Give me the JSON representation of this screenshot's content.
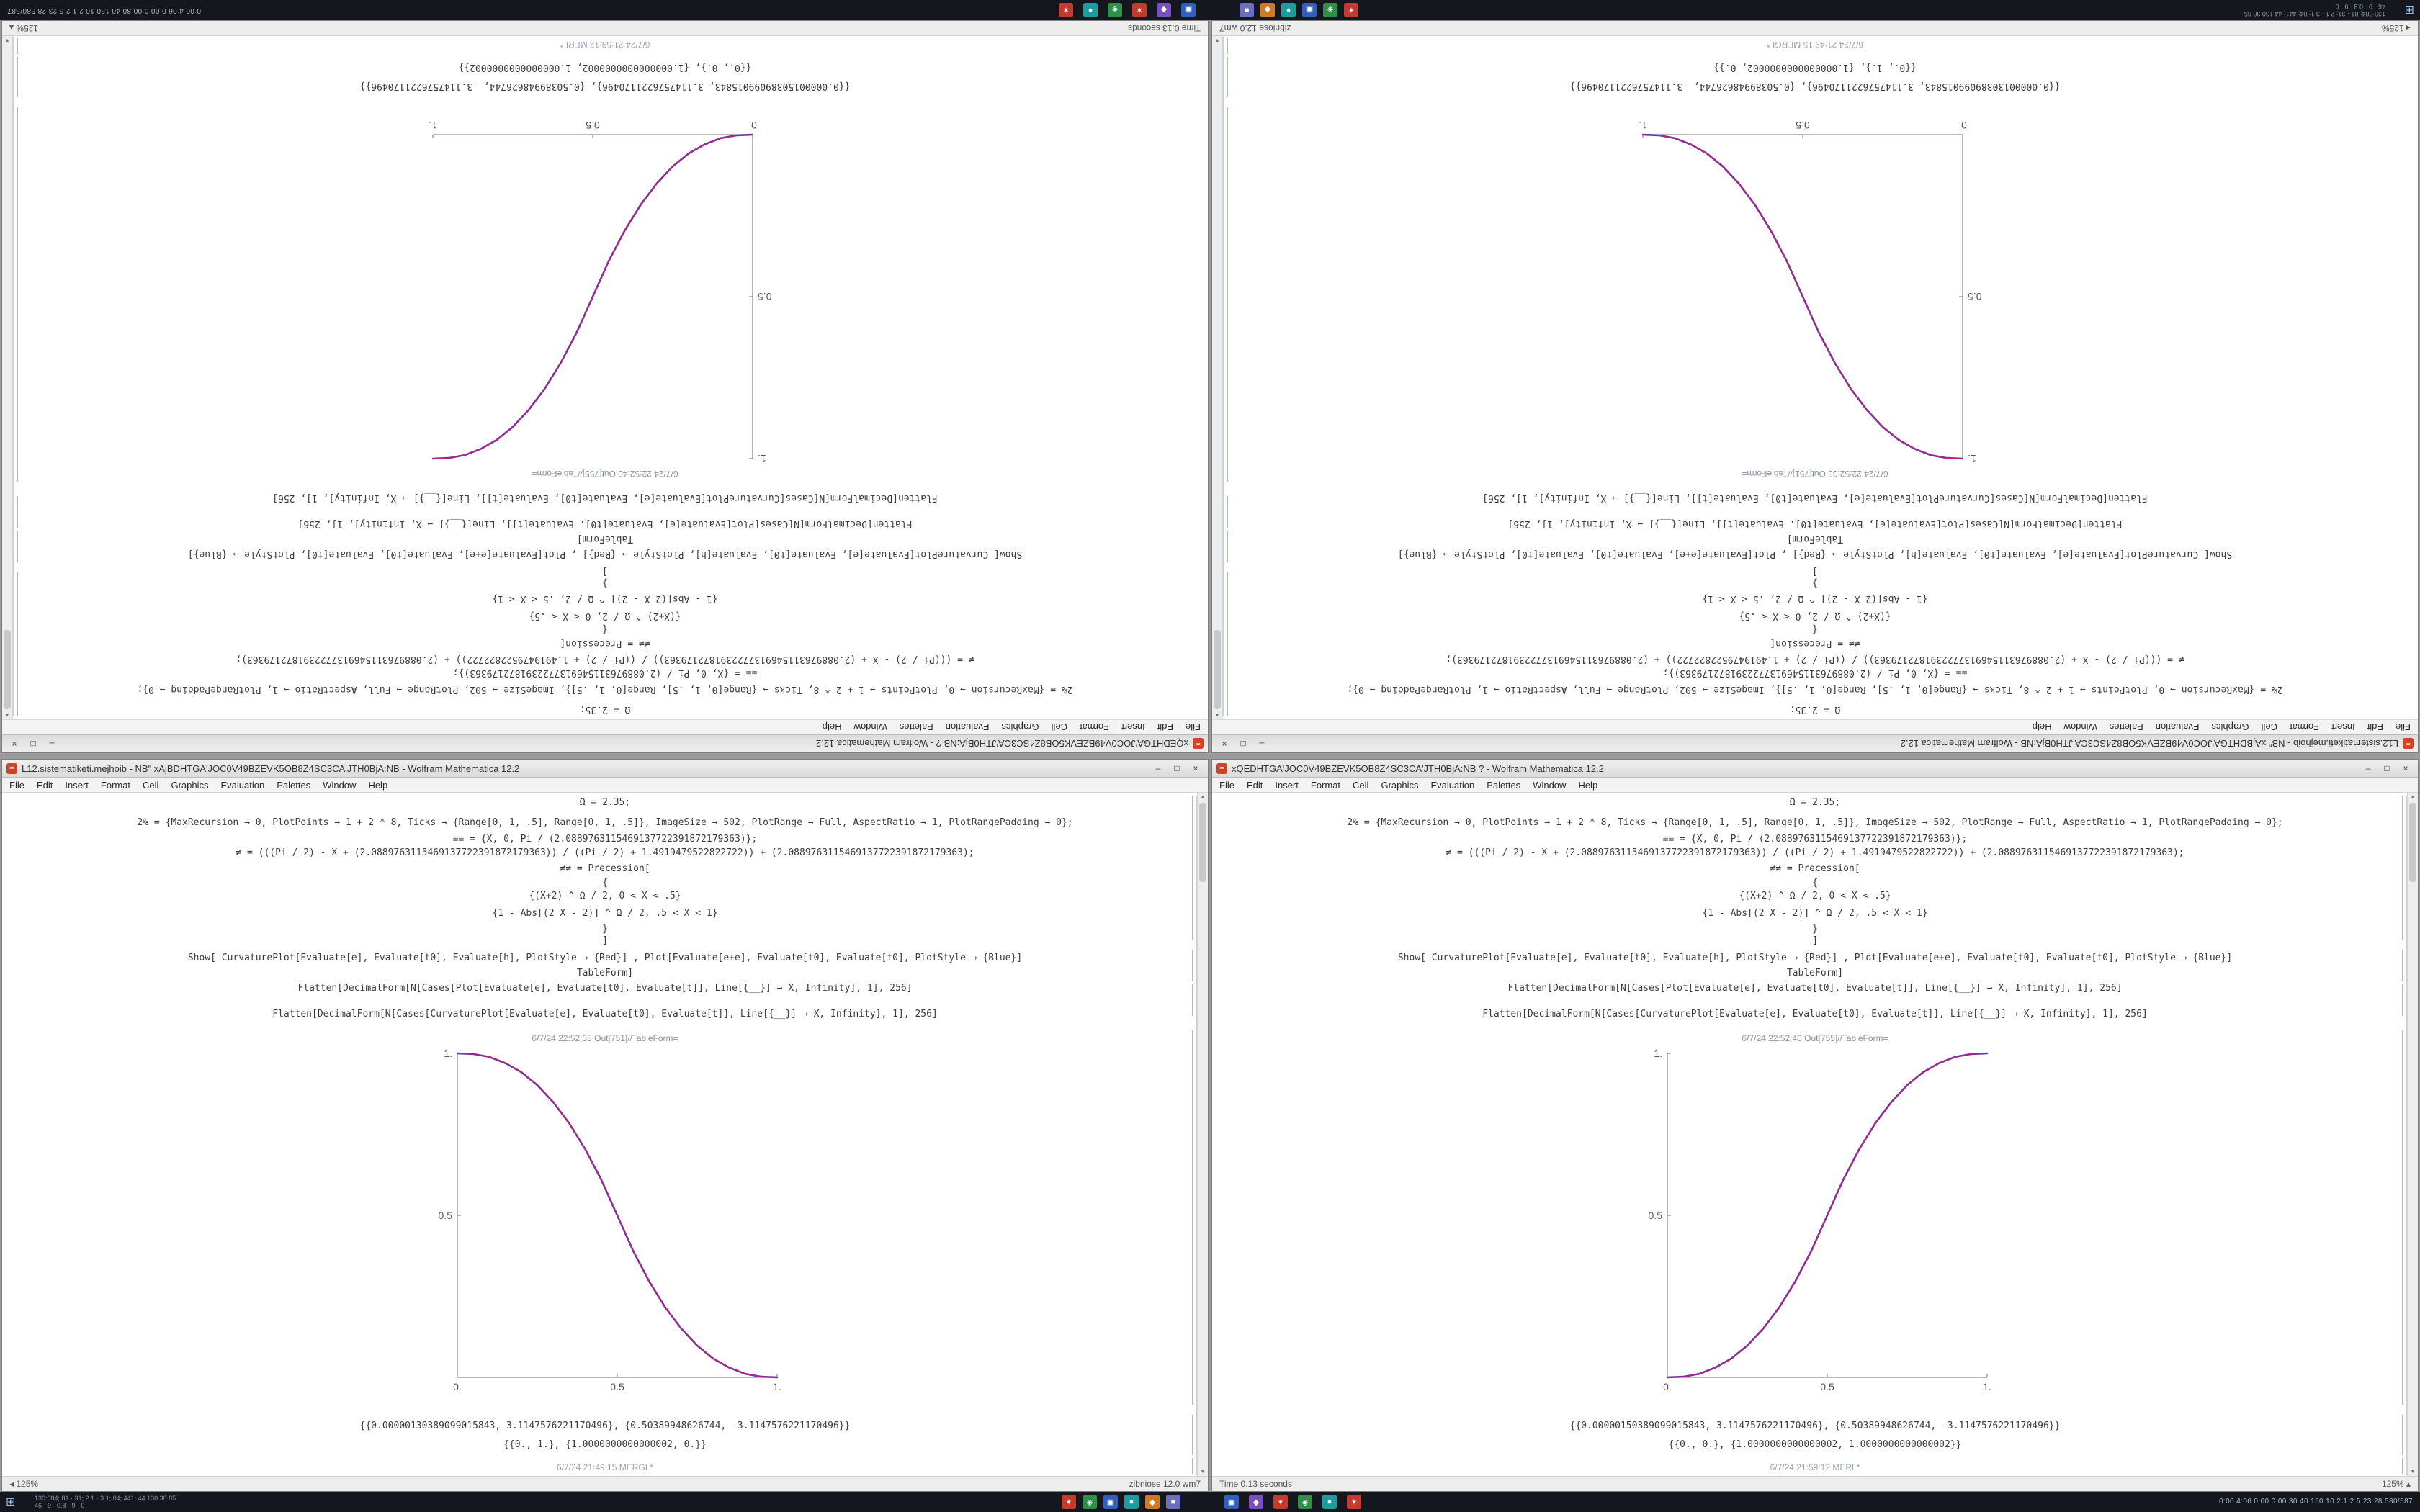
{
  "chrome": {
    "menu_items": [
      "File",
      "Edit",
      "Insert",
      "Format",
      "Cell",
      "Graphics",
      "Evaluation",
      "Palettes",
      "Window",
      "Help"
    ],
    "minimize_label": "–",
    "maximize_label": "□",
    "close_label": "×",
    "scroll_up": "▲",
    "scroll_down": "▼",
    "app_icon_glyph": "✶",
    "app_icon_color": "#d6402a"
  },
  "windows": {
    "left": {
      "title": "L12.sistematiketi.mejhoib - NB\" xAjBDHTGA'JOC0V49BZEVK5OB8Z4SC3CA'JTH0BjA:NB - Wolfram Mathematica 12.2",
      "code_lines": [
        "Ω = 2.35;",
        "2% = {MaxRecursion → 0, PlotPoints → 1 + 2 * 8, Ticks → {Range[0, 1, .5], Range[0, 1, .5]}, ImageSize → 502, PlotRange → Full, AspectRatio → 1, PlotRangePadding → 0};",
        "≡≡ = {X, 0, Pi / (2.0889763115469137722391872179363)};",
        "≠ = (((Pi / 2) - X + (2.0889763115469137722391872179363)) / ((Pi / 2) + 1.4919479522822722)) + (2.0889763115469137722391872179363);",
        "≠≠ = Precession["
      ],
      "braces_lines": [
        "{",
        "{(X+2) ^ Ω / 2,  0 < X < .5}",
        "{1 - Abs[(2 X - 2)] ^ Ω / 2,  .5 < X < 1}",
        "}",
        "]"
      ],
      "show_line": "Show[  CurvaturePlot[Evaluate[e], Evaluate[t0], Evaluate[h], PlotStyle → {Red}]  ,  Plot[Evaluate[e+e], Evaluate[t0], Evaluate[t0], PlotStyle → {Blue}]",
      "tableform_line": "TableForm]",
      "flatten_lines": [
        "Flatten[DecimalForm[N[Cases[Plot[Evaluate[e], Evaluate[t0], Evaluate[t]], Line[{__}] → X, Infinity], 1], 256]",
        "Flatten[DecimalForm[N[Cases[CurvaturePlot[Evaluate[e], Evaluate[t0], Evaluate[t]], Line[{__}] → X, Infinity], 1], 256]"
      ],
      "out_label": "6/7/24 22:52:35 Out[751]//TableForm=",
      "out_numbers": [
        "{{0.00000130389099015843, 3.1147576221170496}, {0.50389948626744, -3.1147576221170496}}",
        "{{0., 1.}, {1.0000000000000002, 0.}}"
      ],
      "bottom_label": "6/7/24 21:49:15 MERGL*",
      "status_left": "◂ 125%",
      "status_right": "zibniose 12.0 wm7"
    },
    "right": {
      "title": "xQEDHTGA'JOC0V49BZEVK5OB8Z4SC3CA'JTH0BjA:NB ? - Wolfram Mathematica 12.2",
      "code_lines": [
        "Ω = 2.35;",
        "2% = {MaxRecursion → 0, PlotPoints → 1 + 2 * 8, Ticks → {Range[0, 1, .5], Range[0, 1, .5]}, ImageSize → 502, PlotRange → Full, AspectRatio → 1, PlotRangePadding → 0};",
        "≡≡ = {X, 0, Pi / (2.0889763115469137722391872179363)};",
        "≠ = (((Pi / 2) - X + (2.0889763115469137722391872179363)) / ((Pi / 2) + 1.4919479522822722)) + (2.0889763115469137722391872179363);",
        "≠≠ = Precession["
      ],
      "braces_lines": [
        "{",
        "{(X+2) ^ Ω / 2,  0 < X < .5}",
        "{1 - Abs[(2 X - 2)] ^ Ω / 2,  .5 < X < 1}",
        "}",
        "]"
      ],
      "show_line": "Show[  CurvaturePlot[Evaluate[e], Evaluate[t0], Evaluate[h], PlotStyle → {Red}]  ,  Plot[Evaluate[e+e], Evaluate[t0], Evaluate[t0], PlotStyle → {Blue}]",
      "tableform_line": "TableForm]",
      "flatten_lines": [
        "Flatten[DecimalForm[N[Cases[Plot[Evaluate[e], Evaluate[t0], Evaluate[t]], Line[{__}] → X, Infinity], 1], 256]",
        "Flatten[DecimalForm[N[Cases[CurvaturePlot[Evaluate[e], Evaluate[t0], Evaluate[t]], Line[{__}] → X, Infinity], 1], 256]"
      ],
      "out_label": "6/7/24 22:52:40 Out[755]//TableForm=",
      "out_numbers": [
        "{{0.00000150389099015843, 3.1147576221170496}, {0.50389948626744, -3.1147576221170496}}",
        "{{0., 0.}, {1.0000000000000002, 1.0000000000000002}}"
      ],
      "bottom_label": "6/7/24 21:59:12 MERL*",
      "status_left": "Time 0.13 seconds",
      "status_right": "125% ▴"
    }
  },
  "taskbar": {
    "start_glyph": "⊞",
    "left_text_line1": "130:084; 81 · 31; 2.1 · 3.1; 04; 441; 44 130 30 85",
    "left_text_line2": "46 · 9 · 0.8 · 9 · 0",
    "app_icons_group1": [
      {
        "label": "✶",
        "color": "#c23b2e"
      },
      {
        "label": "◈",
        "color": "#2e8f4a"
      },
      {
        "label": "▣",
        "color": "#2f5fbf"
      },
      {
        "label": "●",
        "color": "#1d9e9e"
      },
      {
        "label": "◆",
        "color": "#d07a22"
      },
      {
        "label": "■",
        "color": "#6a6fbf"
      }
    ],
    "app_icons_group2": [
      {
        "label": "▣",
        "color": "#2f5fbf"
      },
      {
        "label": "◆",
        "color": "#7a4fbf"
      },
      {
        "label": "✶",
        "color": "#c23b2e"
      },
      {
        "label": "◈",
        "color": "#2e8f4a"
      },
      {
        "label": "●",
        "color": "#1d9e9e"
      },
      {
        "label": "✶",
        "color": "#c23b2e"
      }
    ],
    "tray_text": "0:00   4:06   0:00   0:00    30 40 150 10    2.1 2.5    23 28    580/587"
  },
  "chart_data": [
    {
      "type": "line",
      "title": "",
      "xlabel": "",
      "ylabel": "",
      "x": [
        0,
        0.05,
        0.1,
        0.15,
        0.2,
        0.25,
        0.3,
        0.35,
        0.4,
        0.45,
        0.5,
        0.55,
        0.6,
        0.65,
        0.7,
        0.75,
        0.8,
        0.85,
        0.9,
        0.95,
        1
      ],
      "series": [
        {
          "name": "CurvaturePlot (Red)",
          "color": "#cf2460",
          "values": [
            1,
            0.998,
            0.989,
            0.97,
            0.942,
            0.902,
            0.849,
            0.784,
            0.704,
            0.61,
            0.5,
            0.39,
            0.296,
            0.216,
            0.151,
            0.098,
            0.058,
            0.03,
            0.011,
            0.002,
            0
          ]
        },
        {
          "name": "Plot (Blue)",
          "color": "#4430c8",
          "values": [
            1,
            0.998,
            0.989,
            0.97,
            0.942,
            0.902,
            0.849,
            0.784,
            0.704,
            0.61,
            0.5,
            0.39,
            0.296,
            0.216,
            0.151,
            0.098,
            0.058,
            0.03,
            0.011,
            0.002,
            0
          ]
        }
      ],
      "xlim": [
        0,
        1
      ],
      "ylim": [
        0,
        1
      ],
      "xticks": [
        0,
        0.5,
        1
      ],
      "yticks": [
        0,
        0.5,
        1
      ],
      "xtick_labels": [
        "0.",
        "0.5",
        "1."
      ],
      "ytick_labels": [
        "",
        "0.5",
        "1."
      ],
      "grid": false,
      "legend": "none"
    },
    {
      "type": "line",
      "title": "",
      "xlabel": "",
      "ylabel": "",
      "x": [
        0,
        0.05,
        0.1,
        0.15,
        0.2,
        0.25,
        0.3,
        0.35,
        0.4,
        0.45,
        0.5,
        0.55,
        0.6,
        0.65,
        0.7,
        0.75,
        0.8,
        0.85,
        0.9,
        0.95,
        1
      ],
      "series": [
        {
          "name": "CurvaturePlot (Red)",
          "color": "#cf2460",
          "values": [
            0,
            0.002,
            0.011,
            0.03,
            0.058,
            0.098,
            0.151,
            0.216,
            0.296,
            0.39,
            0.5,
            0.61,
            0.704,
            0.784,
            0.849,
            0.902,
            0.942,
            0.97,
            0.989,
            0.998,
            1
          ]
        },
        {
          "name": "Plot (Blue)",
          "color": "#4430c8",
          "values": [
            0,
            0.002,
            0.011,
            0.03,
            0.058,
            0.098,
            0.151,
            0.216,
            0.296,
            0.39,
            0.5,
            0.61,
            0.704,
            0.784,
            0.849,
            0.902,
            0.942,
            0.97,
            0.989,
            0.998,
            1
          ]
        }
      ],
      "xlim": [
        0,
        1
      ],
      "ylim": [
        0,
        1
      ],
      "xticks": [
        0,
        0.5,
        1
      ],
      "yticks": [
        0,
        0.5,
        1
      ],
      "xtick_labels": [
        "0.",
        "0.5",
        "1."
      ],
      "ytick_labels": [
        "",
        "0.5",
        "1."
      ],
      "grid": false,
      "legend": "none"
    }
  ]
}
